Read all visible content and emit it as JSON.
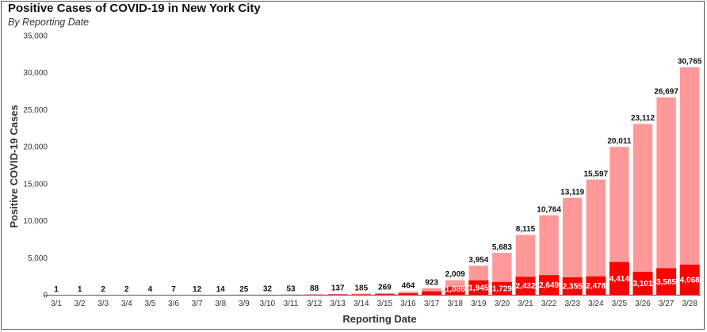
{
  "chart_data": {
    "type": "bar",
    "title": "Positive Cases of COVID-19 in New York City",
    "subtitle": "By Reporting Date",
    "xlabel": "Reporting Date",
    "ylabel": "Positive COVID-19 Cases",
    "ylim": [
      0,
      35000
    ],
    "yticks": [
      0,
      5000,
      10000,
      15000,
      20000,
      25000,
      30000,
      35000
    ],
    "ytick_labels": [
      "0",
      "5,000",
      "10,000",
      "15,000",
      "20,000",
      "25,000",
      "30,000",
      "35,000"
    ],
    "grid": false,
    "categories": [
      "3/1",
      "3/2",
      "3/3",
      "3/4",
      "3/5",
      "3/6",
      "3/7",
      "3/8",
      "3/9",
      "3/10",
      "3/11",
      "3/12",
      "3/13",
      "3/14",
      "3/15",
      "3/16",
      "3/17",
      "3/18",
      "3/19",
      "3/20",
      "3/21",
      "3/22",
      "3/23",
      "3/24",
      "3/25",
      "3/26",
      "3/27",
      "3/28"
    ],
    "series": [
      {
        "values": [
          1,
          1,
          2,
          2,
          4,
          7,
          12,
          14,
          25,
          32,
          53,
          88,
          137,
          185,
          269,
          464,
          923,
          2009,
          3954,
          5683,
          8115,
          10764,
          13119,
          15597,
          20011,
          23112,
          26697,
          30765
        ],
        "labels": [
          "1",
          "1",
          "2",
          "2",
          "4",
          "7",
          "12",
          "14",
          "25",
          "32",
          "53",
          "88",
          "137",
          "185",
          "269",
          "464",
          "923",
          "2,009",
          "3,954",
          "5,683",
          "8,115",
          "10,764",
          "13,119",
          "15,597",
          "20,011",
          "23,112",
          "26,697",
          "30,765"
        ],
        "color": "#ff9999"
      },
      {
        "values": [
          1,
          0,
          1,
          0,
          2,
          3,
          5,
          2,
          11,
          7,
          21,
          35,
          49,
          48,
          84,
          195,
          459,
          1086,
          1945,
          1729,
          2432,
          2649,
          2355,
          2478,
          4414,
          3101,
          3585,
          4068
        ],
        "labels": [
          "",
          "",
          "",
          "",
          "",
          "",
          "",
          "",
          "",
          "",
          "",
          "",
          "",
          "",
          "",
          "",
          "",
          "1,086",
          "1,945",
          "1,729",
          "2,432",
          "2,649",
          "2,355",
          "2,478",
          "4,414",
          "3,101",
          "3,585",
          "4,068"
        ],
        "color": "#ff0000"
      }
    ]
  }
}
